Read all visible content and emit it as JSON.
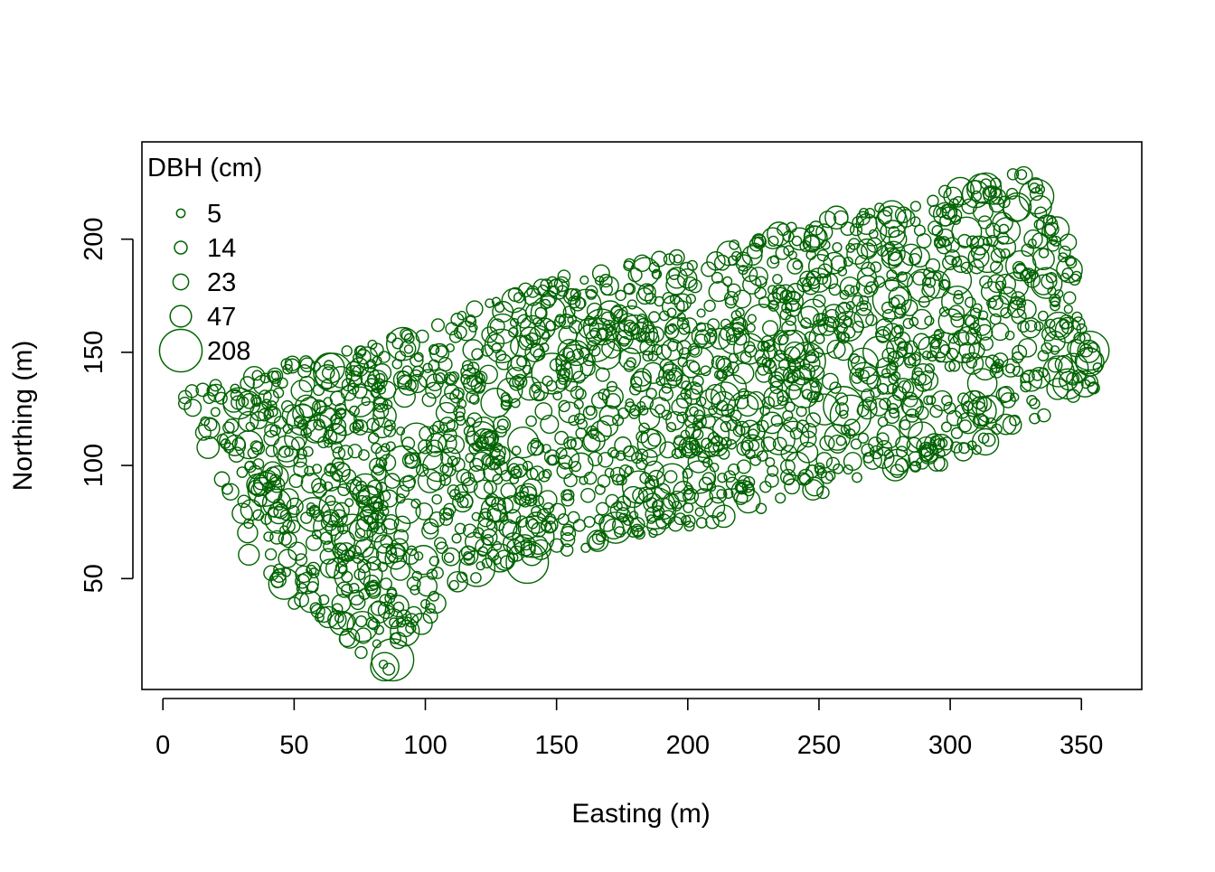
{
  "chart_data": {
    "type": "scatter",
    "title": "",
    "xlabel": "Easting (m)",
    "ylabel": "Northing (m)",
    "xlim": [
      -8,
      373
    ],
    "ylim": [
      1,
      243
    ],
    "x_ticks": [
      0,
      50,
      100,
      150,
      200,
      250,
      300,
      350
    ],
    "y_ticks": [
      50,
      100,
      150,
      200
    ],
    "x_tick_labels": [
      "0",
      "50",
      "100",
      "150",
      "200",
      "250",
      "300",
      "350"
    ],
    "y_tick_labels": [
      "50",
      "100",
      "150",
      "200"
    ],
    "grid": false,
    "marker_color": "#006400",
    "marker": "open-circle-sized-by-dbh",
    "legend": {
      "title": "DBH (cm)",
      "position": "top-left",
      "entries": [
        {
          "label": "5",
          "value": 5
        },
        {
          "label": "14",
          "value": 14
        },
        {
          "label": "23",
          "value": 23
        },
        {
          "label": "47",
          "value": 47
        },
        {
          "label": "208",
          "value": 208
        }
      ]
    },
    "plot_region": {
      "left_edge": [
        [
          7,
          130
        ],
        [
          20,
          100
        ],
        [
          30,
          60
        ],
        [
          60,
          28
        ],
        [
          85,
          8
        ]
      ],
      "top_edge": [
        [
          7,
          132
        ],
        [
          30,
          140
        ],
        [
          75,
          153
        ],
        [
          105,
          165
        ],
        [
          150,
          183
        ],
        [
          200,
          195
        ],
        [
          250,
          208
        ],
        [
          300,
          222
        ],
        [
          330,
          232
        ]
      ],
      "bottom_edge": [
        [
          85,
          8
        ],
        [
          110,
          42
        ],
        [
          160,
          63
        ],
        [
          200,
          72
        ],
        [
          250,
          87
        ],
        [
          300,
          101
        ],
        [
          330,
          117
        ]
      ],
      "right_edge": [
        [
          330,
          232
        ],
        [
          345,
          200
        ],
        [
          358,
          140
        ],
        [
          350,
          125
        ],
        [
          330,
          117
        ]
      ]
    },
    "approx_tree_count": 2000
  }
}
